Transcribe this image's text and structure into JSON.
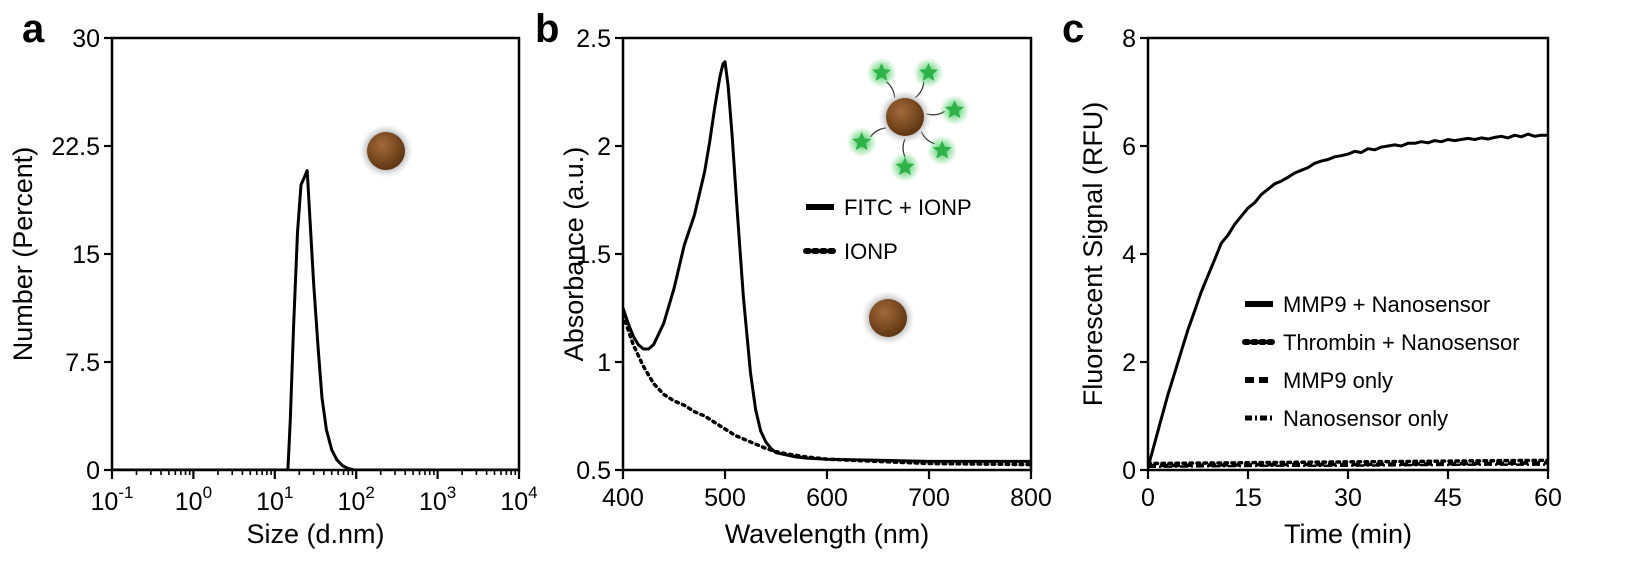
{
  "colors": {
    "line": "#000000",
    "particle_core": "#7a4a22",
    "particle_halo": "#b9b9b9",
    "fluorophore": "#2fb24a"
  },
  "chart_data": [
    {
      "panel": "a",
      "type": "line",
      "title": "",
      "xlabel": "Size (d.nm)",
      "ylabel": "Number (Percent)",
      "xscale": "log",
      "xlim": [
        0.1,
        10000
      ],
      "ylim": [
        0,
        30
      ],
      "x_tick_labels": [
        {
          "base": "10",
          "exp": "-1"
        },
        {
          "base": "10",
          "exp": "0"
        },
        {
          "base": "10",
          "exp": "1"
        },
        {
          "base": "10",
          "exp": "2"
        },
        {
          "base": "10",
          "exp": "3"
        },
        {
          "base": "10",
          "exp": "4"
        }
      ],
      "y_ticks": [
        "0",
        "7.5",
        "15",
        "22.5",
        "30"
      ],
      "series": [
        {
          "name": "IONP",
          "style": "solid",
          "x": [
            0.1,
            14.5,
            15.5,
            17,
            19,
            21,
            23,
            25,
            27,
            30,
            34,
            38,
            43,
            50,
            58,
            68,
            80,
            95,
            10000
          ],
          "y": [
            0,
            0,
            3.5,
            10,
            16.5,
            19.8,
            20.3,
            20.8,
            17.5,
            13,
            8.5,
            5,
            2.8,
            1.4,
            0.7,
            0.3,
            0.1,
            0,
            0
          ]
        }
      ]
    },
    {
      "panel": "b",
      "type": "line",
      "title": "",
      "xlabel": "Wavelength (nm)",
      "ylabel": "Absorbance (a.u.)",
      "xlim": [
        400,
        800
      ],
      "ylim": [
        0.5,
        2.5
      ],
      "x_ticks": [
        "400",
        "500",
        "600",
        "700",
        "800"
      ],
      "y_ticks": [
        "0.5",
        "1",
        "1.5",
        "2",
        "2.5"
      ],
      "legend": [
        "FITC + IONP",
        "IONP"
      ],
      "legend_position": "upper-right",
      "series": [
        {
          "name": "FITC + IONP",
          "style": "solid",
          "x": [
            400,
            405,
            410,
            415,
            420,
            425,
            430,
            440,
            450,
            460,
            470,
            480,
            485,
            490,
            495,
            498,
            500,
            503,
            507,
            512,
            518,
            525,
            530,
            535,
            540,
            545,
            550,
            560,
            570,
            580,
            600,
            650,
            700,
            800
          ],
          "y": [
            1.25,
            1.18,
            1.12,
            1.08,
            1.06,
            1.06,
            1.08,
            1.18,
            1.34,
            1.54,
            1.68,
            1.88,
            2.02,
            2.18,
            2.32,
            2.38,
            2.39,
            2.28,
            2.05,
            1.7,
            1.3,
            0.95,
            0.78,
            0.68,
            0.63,
            0.6,
            0.58,
            0.57,
            0.56,
            0.555,
            0.55,
            0.545,
            0.54,
            0.54
          ]
        },
        {
          "name": "IONP",
          "style": "dotted",
          "x": [
            400,
            410,
            420,
            430,
            440,
            450,
            460,
            470,
            480,
            490,
            500,
            510,
            520,
            530,
            540,
            550,
            560,
            580,
            600,
            650,
            700,
            800
          ],
          "y": [
            1.22,
            1.08,
            0.98,
            0.9,
            0.85,
            0.82,
            0.8,
            0.77,
            0.75,
            0.72,
            0.69,
            0.66,
            0.64,
            0.62,
            0.6,
            0.585,
            0.575,
            0.56,
            0.55,
            0.54,
            0.53,
            0.525
          ]
        }
      ]
    },
    {
      "panel": "c",
      "type": "line",
      "title": "",
      "xlabel": "Time (min)",
      "ylabel": "Fluorescent Signal (RFU)",
      "xlim": [
        0,
        60
      ],
      "ylim": [
        0,
        8
      ],
      "x_ticks": [
        "0",
        "15",
        "30",
        "45",
        "60"
      ],
      "y_ticks": [
        "0",
        "2",
        "4",
        "6",
        "8"
      ],
      "legend": [
        "MMP9 + Nanosensor",
        "Thrombin + Nanosensor",
        "MMP9 only",
        "Nanosensor only"
      ],
      "legend_position": "lower-right",
      "series": [
        {
          "name": "MMP9 + Nanosensor",
          "style": "solid",
          "x": [
            0,
            1,
            2,
            3,
            4,
            5,
            6,
            7,
            8,
            9,
            10,
            11,
            12,
            13,
            14,
            15,
            16,
            17,
            18,
            19,
            20,
            21,
            22,
            23,
            24,
            25,
            26,
            27,
            28,
            29,
            30,
            31,
            32,
            33,
            34,
            35,
            36,
            37,
            38,
            39,
            40,
            41,
            42,
            43,
            44,
            45,
            46,
            47,
            48,
            49,
            50,
            51,
            52,
            53,
            54,
            55,
            56,
            57,
            58,
            59,
            60
          ],
          "y": [
            0.05,
            0.5,
            0.95,
            1.4,
            1.8,
            2.2,
            2.6,
            2.95,
            3.3,
            3.6,
            3.9,
            4.2,
            4.35,
            4.55,
            4.7,
            4.85,
            4.95,
            5.1,
            5.2,
            5.3,
            5.35,
            5.42,
            5.5,
            5.55,
            5.6,
            5.68,
            5.72,
            5.75,
            5.8,
            5.82,
            5.85,
            5.9,
            5.88,
            5.95,
            5.93,
            5.98,
            6.0,
            6.02,
            6.0,
            6.05,
            6.05,
            6.08,
            6.06,
            6.1,
            6.08,
            6.12,
            6.1,
            6.12,
            6.14,
            6.12,
            6.15,
            6.13,
            6.16,
            6.18,
            6.15,
            6.2,
            6.17,
            6.22,
            6.18,
            6.2,
            6.2
          ]
        },
        {
          "name": "Thrombin + Nanosensor",
          "style": "dotted",
          "x": [
            0,
            10,
            20,
            30,
            40,
            50,
            60
          ],
          "y": [
            0.12,
            0.13,
            0.14,
            0.15,
            0.16,
            0.17,
            0.18
          ]
        },
        {
          "name": "MMP9 only",
          "style": "dashed",
          "x": [
            0,
            10,
            20,
            30,
            40,
            50,
            60
          ],
          "y": [
            0.08,
            0.09,
            0.1,
            0.1,
            0.11,
            0.12,
            0.13
          ]
        },
        {
          "name": "Nanosensor only",
          "style": "dashdot",
          "x": [
            0,
            10,
            20,
            30,
            40,
            50,
            60
          ],
          "y": [
            0.06,
            0.07,
            0.08,
            0.08,
            0.09,
            0.1,
            0.1
          ]
        }
      ]
    }
  ]
}
